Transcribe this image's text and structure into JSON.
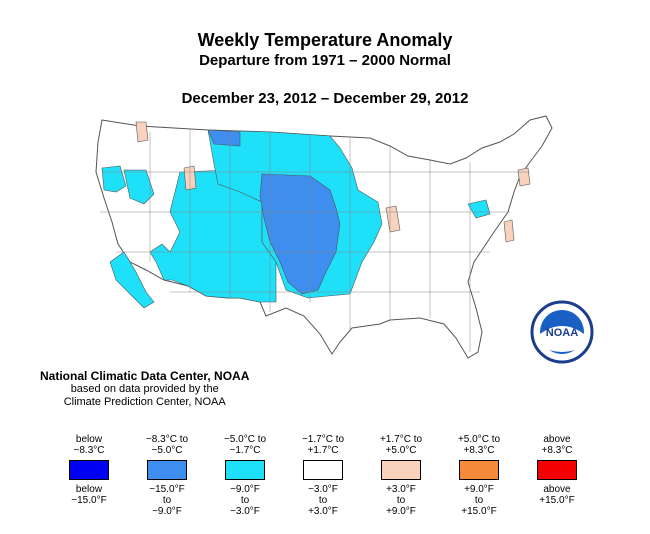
{
  "title": "Weekly Temperature Anomaly",
  "subtitle": "Departure from 1971 – 2000 Normal",
  "date_range": "December 23, 2012 – December 29, 2012",
  "credit": {
    "line1": "National Climatic Data Center, NOAA",
    "line2": "based on data provided by the",
    "line3": "Climate Prediction Center, NOAA"
  },
  "logo": {
    "text": "NOAA",
    "icon": "noaa-logo-icon"
  },
  "legend": [
    {
      "c_top": "below",
      "c_bottom": "−8.3°C",
      "f_top": "below",
      "f_mid": "−15.0°F",
      "f_bot": "",
      "color": "#0000f5"
    },
    {
      "c_top": "−8.3°C to",
      "c_bottom": "−5.0°C",
      "f_top": "−15.0°F",
      "f_mid": "to",
      "f_bot": "−9.0°F",
      "color": "#3e8ef0"
    },
    {
      "c_top": "−5.0°C to",
      "c_bottom": "−1.7°C",
      "f_top": "−9.0°F",
      "f_mid": "to",
      "f_bot": "−3.0°F",
      "color": "#1ee0f8"
    },
    {
      "c_top": "−1.7°C to",
      "c_bottom": "+1.7°C",
      "f_top": "−3.0°F",
      "f_mid": "to",
      "f_bot": "+3.0°F",
      "color": "#ffffff"
    },
    {
      "c_top": "+1.7°C to",
      "c_bottom": "+5.0°C",
      "f_top": "+3.0°F",
      "f_mid": "to",
      "f_bot": "+9.0°F",
      "color": "#f8d2bc"
    },
    {
      "c_top": "+5.0°C to",
      "c_bottom": "+8.3°C",
      "f_top": "+9.0°F",
      "f_mid": "to",
      "f_bot": "+15.0°F",
      "color": "#f58a3a"
    },
    {
      "c_top": "above",
      "c_bottom": "+8.3°C",
      "f_top": "above",
      "f_mid": "+15.0°F",
      "f_bot": "",
      "color": "#f50000"
    }
  ],
  "colors": {
    "cold_strong": "#3e8ef0",
    "cold": "#1ee0f8",
    "neutral": "#ffffff",
    "warm": "#f8d2bc",
    "border": "#555555"
  }
}
